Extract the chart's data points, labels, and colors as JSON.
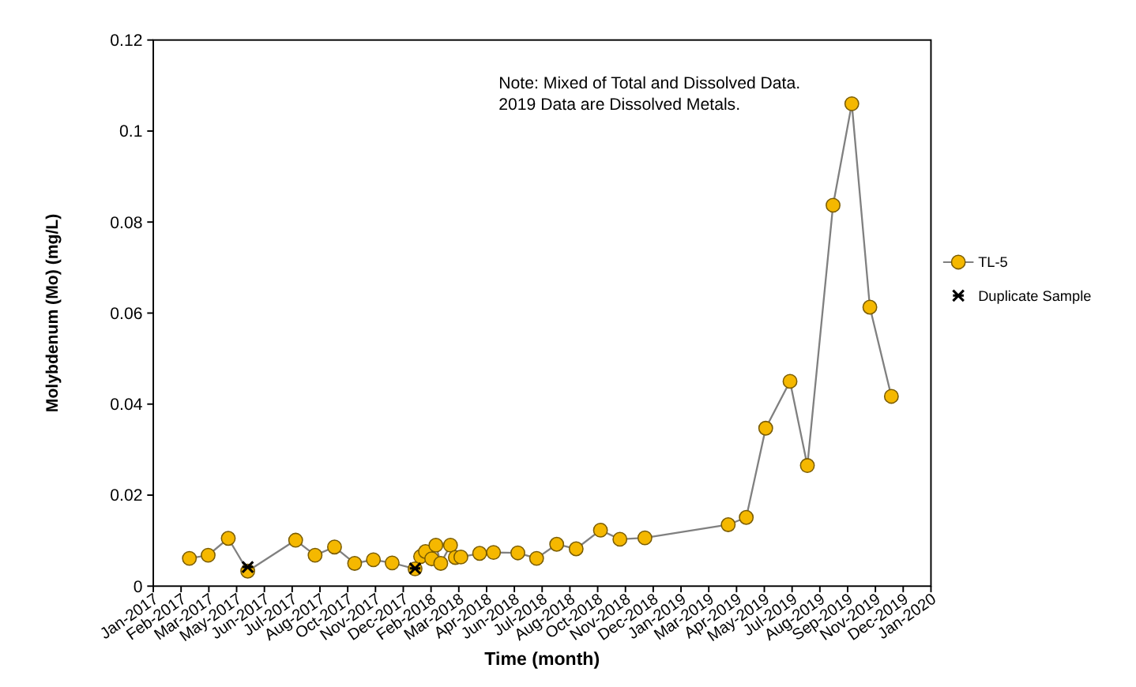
{
  "chart_data": {
    "type": "line",
    "xlabel": "Time (month)",
    "ylabel": "Molybdenum (Mo) (mg/L)",
    "annotations": [
      "Note: Mixed of Total and Dissolved Data.\n2019 Data are Dissolved Metals."
    ],
    "xlim": [
      "2017-01-01",
      "2020-01-26"
    ],
    "xticks": [
      {
        "value": "2017-01-01",
        "label": "Jan-2017"
      },
      {
        "value": "2017-02-10",
        "label": "Feb-2017"
      },
      {
        "value": "2017-03-22",
        "label": "Mar-2017"
      },
      {
        "value": "2017-05-01",
        "label": "May-2017"
      },
      {
        "value": "2017-06-10",
        "label": "Jun-2017"
      },
      {
        "value": "2017-07-20",
        "label": "Jul-2017"
      },
      {
        "value": "2017-08-29",
        "label": "Aug-2017"
      },
      {
        "value": "2017-10-08",
        "label": "Oct-2017"
      },
      {
        "value": "2017-11-17",
        "label": "Nov-2017"
      },
      {
        "value": "2017-12-27",
        "label": "Dec-2017"
      },
      {
        "value": "2018-02-05",
        "label": "Feb-2018"
      },
      {
        "value": "2018-03-17",
        "label": "Mar-2018"
      },
      {
        "value": "2018-04-26",
        "label": "Apr-2018"
      },
      {
        "value": "2018-06-05",
        "label": "Jun-2018"
      },
      {
        "value": "2018-07-15",
        "label": "Jul-2018"
      },
      {
        "value": "2018-08-24",
        "label": "Aug-2018"
      },
      {
        "value": "2018-10-03",
        "label": "Oct-2018"
      },
      {
        "value": "2018-11-12",
        "label": "Nov-2018"
      },
      {
        "value": "2018-12-22",
        "label": "Dec-2018"
      },
      {
        "value": "2019-01-31",
        "label": "Jan-2019"
      },
      {
        "value": "2019-03-12",
        "label": "Mar-2019"
      },
      {
        "value": "2019-04-21",
        "label": "Apr-2019"
      },
      {
        "value": "2019-05-31",
        "label": "May-2019"
      },
      {
        "value": "2019-07-10",
        "label": "Jul-2019"
      },
      {
        "value": "2019-08-19",
        "label": "Aug-2019"
      },
      {
        "value": "2019-09-28",
        "label": "Sep-2019"
      },
      {
        "value": "2019-11-07",
        "label": "Nov-2019"
      },
      {
        "value": "2019-12-17",
        "label": "Dec-2019"
      },
      {
        "value": "2020-01-26",
        "label": "Jan-2020"
      }
    ],
    "ylim": [
      0,
      0.12
    ],
    "yticks": [
      0,
      0.02,
      0.04,
      0.06,
      0.08,
      0.1,
      0.12
    ],
    "grid": false,
    "legend": "right",
    "series": [
      {
        "name": "TL-5",
        "color": "#f5b800",
        "marker": "circle",
        "x": [
          "2017-02-22",
          "2017-03-21",
          "2017-04-19",
          "2017-05-17",
          "2017-07-25",
          "2017-08-22",
          "2017-09-19",
          "2017-10-18",
          "2017-11-14",
          "2017-12-11",
          "2018-01-13",
          "2018-01-21",
          "2018-01-28",
          "2018-02-06",
          "2018-02-12",
          "2018-02-19",
          "2018-03-05",
          "2018-03-12",
          "2018-03-20",
          "2018-04-16",
          "2018-05-06",
          "2018-06-10",
          "2018-07-07",
          "2018-08-05",
          "2018-09-02",
          "2018-10-07",
          "2018-11-04",
          "2018-12-10",
          "2019-04-09",
          "2019-05-05",
          "2019-06-02",
          "2019-07-07",
          "2019-08-01",
          "2019-09-07",
          "2019-10-04",
          "2019-10-30",
          "2019-11-30"
        ],
        "values": [
          0.0061,
          0.0068,
          0.0105,
          0.0033,
          0.0101,
          0.0068,
          0.0086,
          0.005,
          0.0058,
          0.0051,
          0.0038,
          0.0065,
          0.0076,
          0.006,
          0.009,
          0.005,
          0.009,
          0.0063,
          0.0064,
          0.0072,
          0.0074,
          0.0073,
          0.0061,
          0.0092,
          0.0082,
          0.0123,
          0.0103,
          0.0106,
          0.0135,
          0.0151,
          0.0347,
          0.045,
          0.0265,
          0.0837,
          0.106,
          0.0613,
          0.0417
        ]
      },
      {
        "name": "Duplicate Sample",
        "type": "scatter",
        "color": "#000000",
        "marker": "cross",
        "x": [
          "2017-05-17",
          "2018-01-13"
        ],
        "values": [
          0.0042,
          0.0039
        ]
      }
    ]
  }
}
